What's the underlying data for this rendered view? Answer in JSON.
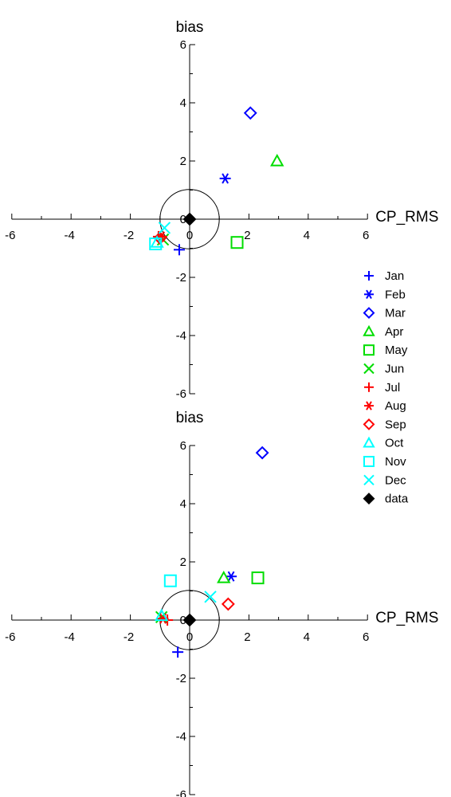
{
  "chart_data": [
    {
      "type": "scatter",
      "title": "",
      "xlabel": "CP_RMS",
      "ylabel": "bias",
      "xlim": [
        -6,
        6
      ],
      "ylim": [
        -6,
        6
      ],
      "x_ticks": [
        -6,
        -4,
        -2,
        0,
        2,
        4,
        6
      ],
      "y_ticks": [
        -6,
        -4,
        -2,
        0,
        2,
        4,
        6
      ],
      "reference_circle_radius": 1,
      "series": [
        {
          "name": "Jan",
          "x": -0.35,
          "y": -1.05
        },
        {
          "name": "Feb",
          "x": 1.2,
          "y": 1.4
        },
        {
          "name": "Mar",
          "x": 2.05,
          "y": 3.65
        },
        {
          "name": "Apr",
          "x": 2.95,
          "y": 2.0
        },
        {
          "name": "May",
          "x": 1.6,
          "y": -0.8
        },
        {
          "name": "Jun",
          "x": -0.9,
          "y": -0.7
        },
        {
          "name": "Jul",
          "x": -1.05,
          "y": -0.6
        },
        {
          "name": "Aug",
          "x": -0.95,
          "y": -0.6
        },
        {
          "name": "Sep",
          "x": -1.0,
          "y": -0.65
        },
        {
          "name": "Oct",
          "x": -1.1,
          "y": -0.8
        },
        {
          "name": "Nov",
          "x": -1.15,
          "y": -0.85
        },
        {
          "name": "Dec",
          "x": -0.85,
          "y": -0.3
        },
        {
          "name": "data",
          "x": 0,
          "y": 0
        }
      ]
    },
    {
      "type": "scatter",
      "title": "",
      "xlabel": "CP_RMS",
      "ylabel": "bias",
      "xlim": [
        -6,
        6
      ],
      "ylim": [
        -6,
        6
      ],
      "x_ticks": [
        -6,
        -4,
        -2,
        0,
        2,
        4,
        6
      ],
      "y_ticks": [
        -6,
        -4,
        -2,
        0,
        2,
        4,
        6
      ],
      "reference_circle_radius": 1,
      "series": [
        {
          "name": "Jan",
          "x": -0.4,
          "y": -1.1
        },
        {
          "name": "Feb",
          "x": 1.4,
          "y": 1.5
        },
        {
          "name": "Mar",
          "x": 2.45,
          "y": 5.75
        },
        {
          "name": "Apr",
          "x": 1.15,
          "y": 1.45
        },
        {
          "name": "May",
          "x": 2.3,
          "y": 1.45
        },
        {
          "name": "Jun",
          "x": -0.95,
          "y": 0.1
        },
        {
          "name": "Jul",
          "x": -0.75,
          "y": 0.0
        },
        {
          "name": "Aug",
          "x": -0.9,
          "y": 0.05
        },
        {
          "name": "Sep",
          "x": 1.3,
          "y": 0.55
        },
        {
          "name": "Oct",
          "x": -0.95,
          "y": 0.15
        },
        {
          "name": "Nov",
          "x": -0.65,
          "y": 1.35
        },
        {
          "name": "Dec",
          "x": 0.7,
          "y": 0.8
        },
        {
          "name": "data",
          "x": 0,
          "y": 0
        }
      ]
    }
  ],
  "legend": {
    "placement": "right",
    "items": [
      {
        "label": "Jan",
        "marker": "plus",
        "color": "#0000ff"
      },
      {
        "label": "Feb",
        "marker": "asterisk",
        "color": "#0000ff"
      },
      {
        "label": "Mar",
        "marker": "diamond",
        "color": "#0000ff"
      },
      {
        "label": "Apr",
        "marker": "triangle",
        "color": "#00dd00"
      },
      {
        "label": "May",
        "marker": "square",
        "color": "#00dd00"
      },
      {
        "label": "Jun",
        "marker": "cross",
        "color": "#00dd00"
      },
      {
        "label": "Jul",
        "marker": "plus",
        "color": "#ff0000"
      },
      {
        "label": "Aug",
        "marker": "asterisk",
        "color": "#ff0000"
      },
      {
        "label": "Sep",
        "marker": "diamond",
        "color": "#ff0000"
      },
      {
        "label": "Oct",
        "marker": "triangle",
        "color": "#00ffff"
      },
      {
        "label": "Nov",
        "marker": "square",
        "color": "#00ffff"
      },
      {
        "label": "Dec",
        "marker": "cross",
        "color": "#00ffff"
      },
      {
        "label": "data",
        "marker": "filled-diamond",
        "color": "#000000"
      }
    ]
  }
}
